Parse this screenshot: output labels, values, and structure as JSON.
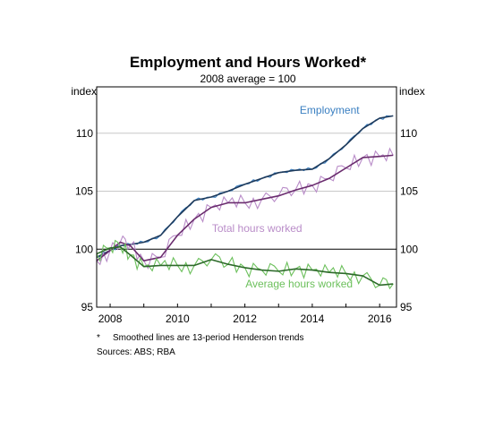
{
  "chart_data": {
    "type": "line",
    "title": "Employment and Hours Worked*",
    "subtitle": "2008 average = 100",
    "ylabel_left": "index",
    "ylabel_right": "index",
    "xlim": [
      2007.6,
      2016.5
    ],
    "ylim": [
      95,
      114
    ],
    "x_ticks": [
      2008,
      2010,
      2012,
      2014,
      2016
    ],
    "x_tick_labels": [
      "2008",
      "2010",
      "2012",
      "2014",
      "2016"
    ],
    "y_ticks": [
      95,
      100,
      105,
      110
    ],
    "y_tick_labels": [
      "95",
      "100",
      "105",
      "110"
    ],
    "grid": "horizontal",
    "series": [
      {
        "name": "Employment",
        "color": "#3a7fc1",
        "trend_color": "#1f3b5c",
        "x": [
          2007.6,
          2008.0,
          2008.3,
          2008.6,
          2009.0,
          2009.5,
          2010.0,
          2010.5,
          2011.0,
          2011.5,
          2012.0,
          2012.5,
          2013.0,
          2013.5,
          2014.0,
          2014.5,
          2015.0,
          2015.5,
          2016.0,
          2016.4
        ],
        "values": [
          99.3,
          99.9,
          100.3,
          100.4,
          100.6,
          101.2,
          102.8,
          104.2,
          104.5,
          105.0,
          105.6,
          106.1,
          106.6,
          106.8,
          106.9,
          107.8,
          109.0,
          110.4,
          111.3,
          111.5
        ]
      },
      {
        "name": "Total hours worked",
        "color": "#b98cc8",
        "trend_color": "#6a2c6e",
        "x": [
          2007.6,
          2008.0,
          2008.3,
          2008.6,
          2009.0,
          2009.5,
          2010.0,
          2010.5,
          2011.0,
          2011.5,
          2012.0,
          2012.5,
          2013.0,
          2013.5,
          2014.0,
          2014.5,
          2015.0,
          2015.5,
          2016.0,
          2016.4
        ],
        "values": [
          99.0,
          99.9,
          100.6,
          100.3,
          99.0,
          99.3,
          101.2,
          102.6,
          103.6,
          104.0,
          104.0,
          104.3,
          104.6,
          105.1,
          105.5,
          106.1,
          107.0,
          107.9,
          108.0,
          108.1
        ]
      },
      {
        "name": "Average hours worked",
        "color": "#6cc05c",
        "trend_color": "#2d6a2a",
        "x": [
          2007.6,
          2008.0,
          2008.3,
          2008.6,
          2009.0,
          2009.5,
          2010.0,
          2010.5,
          2011.0,
          2011.5,
          2012.0,
          2012.5,
          2013.0,
          2013.5,
          2014.0,
          2014.5,
          2015.0,
          2015.5,
          2016.0,
          2016.4
        ],
        "values": [
          99.6,
          100.1,
          100.2,
          99.5,
          98.5,
          98.6,
          98.6,
          98.6,
          99.1,
          98.7,
          98.4,
          98.2,
          98.1,
          98.3,
          98.2,
          98.0,
          97.9,
          97.7,
          96.9,
          97.0
        ]
      }
    ],
    "footnote_marker": "*",
    "footnote": "Smoothed lines are 13-period Henderson trends",
    "sources": "Sources:  ABS; RBA"
  }
}
